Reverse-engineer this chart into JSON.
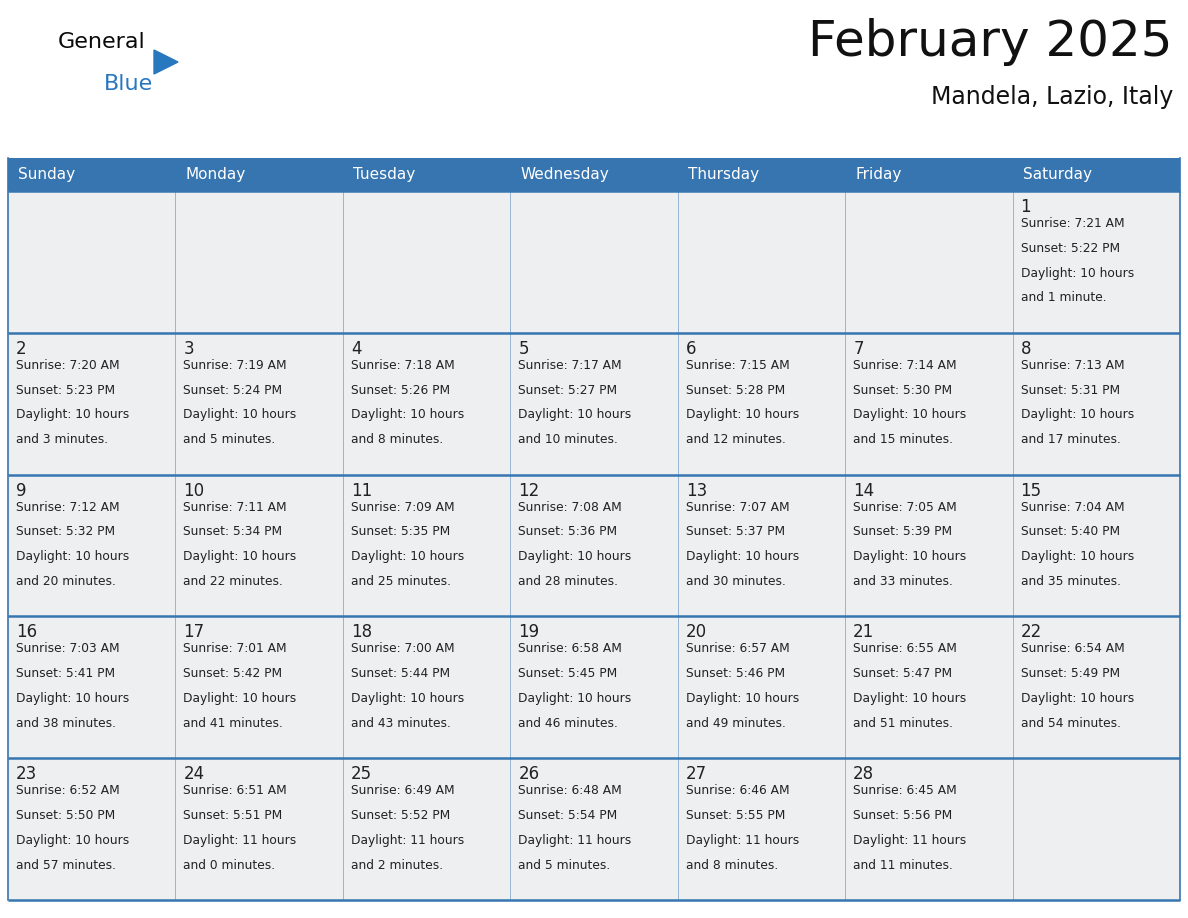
{
  "title": "February 2025",
  "subtitle": "Mandela, Lazio, Italy",
  "days_of_week": [
    "Sunday",
    "Monday",
    "Tuesday",
    "Wednesday",
    "Thursday",
    "Friday",
    "Saturday"
  ],
  "header_bg": "#3675b0",
  "header_text": "#ffffff",
  "cell_bg": "#eeeff0",
  "border_color": "#3675b0",
  "text_color": "#222222",
  "title_color": "#111111",
  "logo_black": "#0a0a0a",
  "logo_blue": "#2878c0",
  "calendar_data": [
    [
      null,
      null,
      null,
      null,
      null,
      null,
      {
        "day": 1,
        "sunrise": "7:21 AM",
        "sunset": "5:22 PM",
        "daylight": "10 hours and 1 minute."
      }
    ],
    [
      {
        "day": 2,
        "sunrise": "7:20 AM",
        "sunset": "5:23 PM",
        "daylight": "10 hours and 3 minutes."
      },
      {
        "day": 3,
        "sunrise": "7:19 AM",
        "sunset": "5:24 PM",
        "daylight": "10 hours and 5 minutes."
      },
      {
        "day": 4,
        "sunrise": "7:18 AM",
        "sunset": "5:26 PM",
        "daylight": "10 hours and 8 minutes."
      },
      {
        "day": 5,
        "sunrise": "7:17 AM",
        "sunset": "5:27 PM",
        "daylight": "10 hours and 10 minutes."
      },
      {
        "day": 6,
        "sunrise": "7:15 AM",
        "sunset": "5:28 PM",
        "daylight": "10 hours and 12 minutes."
      },
      {
        "day": 7,
        "sunrise": "7:14 AM",
        "sunset": "5:30 PM",
        "daylight": "10 hours and 15 minutes."
      },
      {
        "day": 8,
        "sunrise": "7:13 AM",
        "sunset": "5:31 PM",
        "daylight": "10 hours and 17 minutes."
      }
    ],
    [
      {
        "day": 9,
        "sunrise": "7:12 AM",
        "sunset": "5:32 PM",
        "daylight": "10 hours and 20 minutes."
      },
      {
        "day": 10,
        "sunrise": "7:11 AM",
        "sunset": "5:34 PM",
        "daylight": "10 hours and 22 minutes."
      },
      {
        "day": 11,
        "sunrise": "7:09 AM",
        "sunset": "5:35 PM",
        "daylight": "10 hours and 25 minutes."
      },
      {
        "day": 12,
        "sunrise": "7:08 AM",
        "sunset": "5:36 PM",
        "daylight": "10 hours and 28 minutes."
      },
      {
        "day": 13,
        "sunrise": "7:07 AM",
        "sunset": "5:37 PM",
        "daylight": "10 hours and 30 minutes."
      },
      {
        "day": 14,
        "sunrise": "7:05 AM",
        "sunset": "5:39 PM",
        "daylight": "10 hours and 33 minutes."
      },
      {
        "day": 15,
        "sunrise": "7:04 AM",
        "sunset": "5:40 PM",
        "daylight": "10 hours and 35 minutes."
      }
    ],
    [
      {
        "day": 16,
        "sunrise": "7:03 AM",
        "sunset": "5:41 PM",
        "daylight": "10 hours and 38 minutes."
      },
      {
        "day": 17,
        "sunrise": "7:01 AM",
        "sunset": "5:42 PM",
        "daylight": "10 hours and 41 minutes."
      },
      {
        "day": 18,
        "sunrise": "7:00 AM",
        "sunset": "5:44 PM",
        "daylight": "10 hours and 43 minutes."
      },
      {
        "day": 19,
        "sunrise": "6:58 AM",
        "sunset": "5:45 PM",
        "daylight": "10 hours and 46 minutes."
      },
      {
        "day": 20,
        "sunrise": "6:57 AM",
        "sunset": "5:46 PM",
        "daylight": "10 hours and 49 minutes."
      },
      {
        "day": 21,
        "sunrise": "6:55 AM",
        "sunset": "5:47 PM",
        "daylight": "10 hours and 51 minutes."
      },
      {
        "day": 22,
        "sunrise": "6:54 AM",
        "sunset": "5:49 PM",
        "daylight": "10 hours and 54 minutes."
      }
    ],
    [
      {
        "day": 23,
        "sunrise": "6:52 AM",
        "sunset": "5:50 PM",
        "daylight": "10 hours and 57 minutes."
      },
      {
        "day": 24,
        "sunrise": "6:51 AM",
        "sunset": "5:51 PM",
        "daylight": "11 hours and 0 minutes."
      },
      {
        "day": 25,
        "sunrise": "6:49 AM",
        "sunset": "5:52 PM",
        "daylight": "11 hours and 2 minutes."
      },
      {
        "day": 26,
        "sunrise": "6:48 AM",
        "sunset": "5:54 PM",
        "daylight": "11 hours and 5 minutes."
      },
      {
        "day": 27,
        "sunrise": "6:46 AM",
        "sunset": "5:55 PM",
        "daylight": "11 hours and 8 minutes."
      },
      {
        "day": 28,
        "sunrise": "6:45 AM",
        "sunset": "5:56 PM",
        "daylight": "11 hours and 11 minutes."
      },
      null
    ]
  ],
  "fig_width": 11.88,
  "fig_height": 9.18,
  "dpi": 100
}
